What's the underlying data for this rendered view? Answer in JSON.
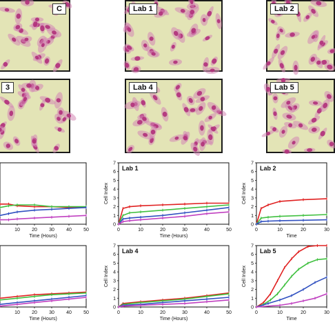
{
  "micrographs": [
    {
      "id": "lab-c",
      "label": "C"
    },
    {
      "id": "lab-1",
      "label": "Lab 1"
    },
    {
      "id": "lab-2",
      "label": "Lab 2"
    },
    {
      "id": "lab-3",
      "label": "3"
    },
    {
      "id": "lab-4",
      "label": "Lab 4"
    },
    {
      "id": "lab-5",
      "label": "Lab 5"
    }
  ],
  "colors": {
    "background": "#e3e4b6",
    "nucleus": "#b0307a",
    "cytoplasm": "#d486b4",
    "red": "#e02020",
    "green": "#40c040",
    "blue": "#3050c0",
    "magenta": "#c040c0"
  },
  "chart_data": [
    {
      "id": "chart-c",
      "type": "line",
      "label": "",
      "xlabel": "Time (Hours)",
      "ylabel": "",
      "xlim": [
        0,
        50
      ],
      "ylim": [
        0,
        7
      ],
      "xticks": [
        10,
        20,
        30,
        40,
        50
      ],
      "yticks": [],
      "series": [
        {
          "color": "#e02020",
          "values": [
            [
              0,
              2.3
            ],
            [
              5,
              2.3
            ],
            [
              10,
              2.1
            ],
            [
              20,
              2.0
            ],
            [
              30,
              2.0
            ],
            [
              40,
              1.9
            ],
            [
              50,
              1.9
            ]
          ]
        },
        {
          "color": "#40c040",
          "values": [
            [
              0,
              1.9
            ],
            [
              5,
              2.1
            ],
            [
              10,
              2.2
            ],
            [
              20,
              2.2
            ],
            [
              30,
              2.0
            ],
            [
              40,
              2.0
            ],
            [
              50,
              2.0
            ]
          ]
        },
        {
          "color": "#3050c0",
          "values": [
            [
              0,
              1.0
            ],
            [
              5,
              1.2
            ],
            [
              10,
              1.4
            ],
            [
              20,
              1.6
            ],
            [
              30,
              1.7
            ],
            [
              40,
              1.8
            ],
            [
              50,
              1.9
            ]
          ]
        },
        {
          "color": "#c040c0",
          "values": [
            [
              0,
              0.5
            ],
            [
              5,
              0.5
            ],
            [
              10,
              0.6
            ],
            [
              20,
              0.7
            ],
            [
              30,
              0.8
            ],
            [
              40,
              0.9
            ],
            [
              50,
              1.0
            ]
          ]
        }
      ]
    },
    {
      "id": "chart-lab1",
      "type": "line",
      "label": "Lab 1",
      "xlabel": "Time (Hours)",
      "ylabel": "Cell Index",
      "xlim": [
        0,
        50
      ],
      "ylim": [
        0,
        7
      ],
      "xticks": [
        0,
        10,
        20,
        30,
        40,
        50
      ],
      "yticks": [
        0,
        1,
        2,
        3,
        4,
        5,
        6,
        7
      ],
      "series": [
        {
          "color": "#e02020",
          "values": [
            [
              0,
              0
            ],
            [
              2,
              1.8
            ],
            [
              5,
              2.0
            ],
            [
              10,
              2.1
            ],
            [
              20,
              2.2
            ],
            [
              30,
              2.3
            ],
            [
              40,
              2.4
            ],
            [
              50,
              2.4
            ]
          ]
        },
        {
          "color": "#40c040",
          "values": [
            [
              0,
              0
            ],
            [
              2,
              1.0
            ],
            [
              5,
              1.3
            ],
            [
              10,
              1.4
            ],
            [
              20,
              1.6
            ],
            [
              30,
              1.8
            ],
            [
              40,
              2.0
            ],
            [
              50,
              2.2
            ]
          ]
        },
        {
          "color": "#3050c0",
          "values": [
            [
              0,
              0
            ],
            [
              2,
              0.6
            ],
            [
              5,
              0.7
            ],
            [
              10,
              0.8
            ],
            [
              20,
              1.0
            ],
            [
              30,
              1.3
            ],
            [
              40,
              1.6
            ],
            [
              50,
              1.9
            ]
          ]
        },
        {
          "color": "#c040c0",
          "values": [
            [
              0,
              0
            ],
            [
              2,
              0.3
            ],
            [
              5,
              0.4
            ],
            [
              10,
              0.5
            ],
            [
              20,
              0.7
            ],
            [
              30,
              0.9
            ],
            [
              40,
              1.2
            ],
            [
              50,
              1.4
            ]
          ]
        }
      ]
    },
    {
      "id": "chart-lab2",
      "type": "line",
      "label": "Lab 2",
      "xlabel": "Time",
      "ylabel": "Cell Index",
      "xlim": [
        0,
        30
      ],
      "ylim": [
        0,
        7
      ],
      "xticks": [
        0,
        10,
        20,
        30
      ],
      "yticks": [
        0,
        1,
        2,
        3,
        4,
        5,
        6,
        7
      ],
      "series": [
        {
          "color": "#e02020",
          "values": [
            [
              0,
              0
            ],
            [
              2,
              1.8
            ],
            [
              5,
              2.2
            ],
            [
              10,
              2.6
            ],
            [
              20,
              2.8
            ],
            [
              30,
              2.9
            ]
          ]
        },
        {
          "color": "#40c040",
          "values": [
            [
              0,
              0
            ],
            [
              2,
              0.7
            ],
            [
              5,
              0.8
            ],
            [
              10,
              0.9
            ],
            [
              20,
              1.0
            ],
            [
              30,
              1.1
            ]
          ]
        },
        {
          "color": "#3050c0",
          "values": [
            [
              0,
              0
            ],
            [
              2,
              0.3
            ],
            [
              5,
              0.35
            ],
            [
              10,
              0.4
            ],
            [
              20,
              0.45
            ],
            [
              30,
              0.5
            ]
          ]
        }
      ]
    },
    {
      "id": "chart-c-bottom",
      "type": "line",
      "label": "",
      "xlabel": "Time (Hours)",
      "ylabel": "",
      "xlim": [
        0,
        50
      ],
      "ylim": [
        0,
        7
      ],
      "xticks": [
        10,
        20,
        30,
        40,
        50
      ],
      "yticks": [],
      "series": [
        {
          "color": "#e02020",
          "values": [
            [
              0,
              1.0
            ],
            [
              10,
              1.2
            ],
            [
              20,
              1.4
            ],
            [
              30,
              1.5
            ],
            [
              40,
              1.6
            ],
            [
              50,
              1.7
            ]
          ]
        },
        {
          "color": "#40c040",
          "values": [
            [
              0,
              0.8
            ],
            [
              10,
              1.0
            ],
            [
              20,
              1.2
            ],
            [
              30,
              1.4
            ],
            [
              40,
              1.5
            ],
            [
              50,
              1.6
            ]
          ]
        },
        {
          "color": "#3050c0",
          "values": [
            [
              0,
              0.3
            ],
            [
              10,
              0.5
            ],
            [
              20,
              0.7
            ],
            [
              30,
              0.9
            ],
            [
              40,
              1.1
            ],
            [
              50,
              1.3
            ]
          ]
        },
        {
          "color": "#c040c0",
          "values": [
            [
              0,
              0.1
            ],
            [
              10,
              0.3
            ],
            [
              20,
              0.5
            ],
            [
              30,
              0.7
            ],
            [
              40,
              0.9
            ],
            [
              50,
              1.1
            ]
          ]
        }
      ]
    },
    {
      "id": "chart-lab4",
      "type": "line",
      "label": "Lab 4",
      "xlabel": "Time (Hours)",
      "ylabel": "Cell Index",
      "xlim": [
        0,
        50
      ],
      "ylim": [
        0,
        7
      ],
      "xticks": [
        0,
        10,
        20,
        30,
        40,
        50
      ],
      "yticks": [
        0,
        1,
        2,
        3,
        4,
        5,
        6,
        7
      ],
      "series": [
        {
          "color": "#e02020",
          "values": [
            [
              0,
              0
            ],
            [
              2,
              0.4
            ],
            [
              10,
              0.6
            ],
            [
              20,
              0.8
            ],
            [
              30,
              1.0
            ],
            [
              40,
              1.3
            ],
            [
              50,
              1.6
            ]
          ]
        },
        {
          "color": "#40c040",
          "values": [
            [
              0,
              0
            ],
            [
              2,
              0.3
            ],
            [
              10,
              0.5
            ],
            [
              20,
              0.7
            ],
            [
              30,
              0.9
            ],
            [
              40,
              1.2
            ],
            [
              50,
              1.5
            ]
          ]
        },
        {
          "color": "#3050c0",
          "values": [
            [
              0,
              0
            ],
            [
              2,
              0.2
            ],
            [
              10,
              0.3
            ],
            [
              20,
              0.5
            ],
            [
              30,
              0.7
            ],
            [
              40,
              0.9
            ],
            [
              50,
              1.1
            ]
          ]
        },
        {
          "color": "#c040c0",
          "values": [
            [
              0,
              0
            ],
            [
              2,
              0.1
            ],
            [
              10,
              0.2
            ],
            [
              20,
              0.3
            ],
            [
              30,
              0.4
            ],
            [
              40,
              0.6
            ],
            [
              50,
              0.8
            ]
          ]
        }
      ]
    },
    {
      "id": "chart-lab5",
      "type": "line",
      "label": "Lab 5",
      "xlabel": "Time",
      "ylabel": "Cell Index",
      "xlim": [
        0,
        30
      ],
      "ylim": [
        0,
        7
      ],
      "xticks": [
        0,
        10,
        20,
        30
      ],
      "yticks": [
        0,
        1,
        2,
        3,
        4,
        5,
        6,
        7
      ],
      "series": [
        {
          "color": "#e02020",
          "values": [
            [
              0,
              0
            ],
            [
              3,
              0.5
            ],
            [
              6,
              1.5
            ],
            [
              9,
              3.0
            ],
            [
              12,
              4.5
            ],
            [
              15,
              5.5
            ],
            [
              18,
              6.3
            ],
            [
              22,
              6.9
            ],
            [
              26,
              7.0
            ],
            [
              30,
              7.0
            ]
          ]
        },
        {
          "color": "#40c040",
          "values": [
            [
              0,
              0
            ],
            [
              3,
              0.3
            ],
            [
              6,
              0.8
            ],
            [
              9,
              1.5
            ],
            [
              12,
              2.5
            ],
            [
              15,
              3.5
            ],
            [
              18,
              4.3
            ],
            [
              22,
              5.0
            ],
            [
              26,
              5.4
            ],
            [
              30,
              5.5
            ]
          ]
        },
        {
          "color": "#3050c0",
          "values": [
            [
              0,
              0
            ],
            [
              5,
              0.4
            ],
            [
              10,
              0.8
            ],
            [
              15,
              1.3
            ],
            [
              20,
              2.0
            ],
            [
              25,
              2.8
            ],
            [
              30,
              3.4
            ]
          ]
        },
        {
          "color": "#c040c0",
          "values": [
            [
              0,
              0
            ],
            [
              10,
              0.2
            ],
            [
              15,
              0.4
            ],
            [
              20,
              0.7
            ],
            [
              25,
              1.0
            ],
            [
              30,
              1.5
            ]
          ]
        }
      ]
    }
  ]
}
